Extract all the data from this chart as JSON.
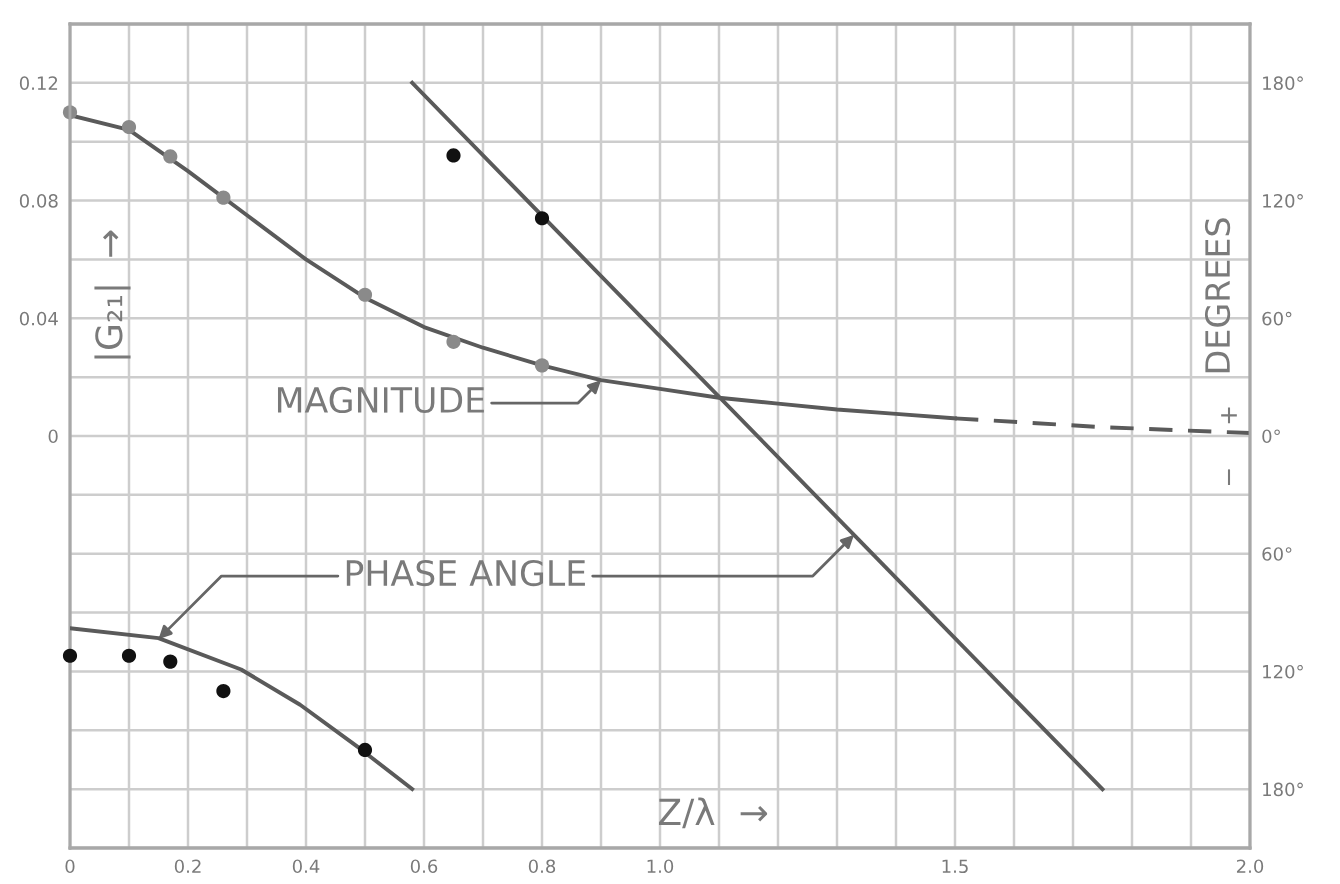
{
  "chart_data": {
    "type": "line",
    "xlabel": "Z/λ  →",
    "ylabel": "|G₂₁|  →",
    "y2label": "DEGREES",
    "annotations": [
      {
        "text": "MAGNITUDE",
        "x": 0.9,
        "y": 0.019
      },
      {
        "text": "PHASE ANGLE",
        "x": 0.15,
        "y": -0.069
      },
      "+",
      "−"
    ],
    "xlim": [
      0,
      2.0
    ],
    "xticks": [
      0,
      {
        "value": 0.1,
        "label": null
      },
      0.2,
      {
        "value": 0.3,
        "label": null
      },
      0.4,
      {
        "value": 0.5,
        "label": null
      },
      0.6,
      {
        "value": 0.7,
        "label": null
      },
      0.8,
      {
        "value": 0.9,
        "label": null
      },
      {
        "value": 1,
        "label": "1.0"
      },
      {
        "value": 1.1,
        "label": null
      },
      {
        "value": 1.2,
        "label": null
      },
      {
        "value": 1.3,
        "label": null
      },
      {
        "value": 1.4,
        "label": null
      },
      1.5,
      {
        "value": 1.6,
        "label": null
      },
      {
        "value": 1.7,
        "label": null
      },
      {
        "value": 1.8,
        "label": null
      },
      {
        "value": 1.9,
        "label": null
      },
      {
        "value": 2,
        "label": "2.0"
      }
    ],
    "ylim": [
      -0.14,
      0.14
    ],
    "yticks": [
      {
        "value": -0.14,
        "label": null
      },
      {
        "value": -0.12,
        "label": null
      },
      {
        "value": -0.1,
        "label": null
      },
      {
        "value": -0.08,
        "label": null
      },
      {
        "value": -0.06,
        "label": null
      },
      {
        "value": -0.04,
        "label": null
      },
      {
        "value": -0.02,
        "label": null
      },
      0,
      {
        "value": 0.02,
        "label": null
      },
      0.04,
      {
        "value": 0.06,
        "label": null
      },
      0.08,
      {
        "value": 0.1,
        "label": null
      },
      0.12,
      {
        "value": 0.14,
        "label": null
      }
    ],
    "y2lim": [
      -210,
      210
    ],
    "y2ticks": [
      {
        "value": -180,
        "label": "180°"
      },
      {
        "value": -120,
        "label": "120°"
      },
      {
        "value": -60,
        "label": "60°"
      },
      {
        "value": 0,
        "label": "0°"
      },
      {
        "value": 60,
        "label": "60°"
      },
      {
        "value": 120,
        "label": "120°"
      },
      {
        "value": 180,
        "label": "180°"
      }
    ],
    "grid": true,
    "series": [
      {
        "color": "#5a5a5a",
        "x": [
          0,
          0.1,
          0.2,
          0.3,
          0.4,
          0.5,
          0.6,
          0.7,
          0.8,
          0.9,
          1.0,
          1.1,
          1.2,
          1.3,
          1.4,
          1.5
        ],
        "values": [
          0.109,
          0.104,
          0.09,
          0.075,
          0.06,
          0.047,
          0.037,
          0.03,
          0.024,
          0.019,
          0.016,
          0.013,
          0.011,
          0.009,
          0.0075,
          0.006
        ]
      },
      {
        "line_style": "dashed",
        "color": "#5a5a5a",
        "x": [
          1.5,
          1.75,
          2.0
        ],
        "values": [
          0.006,
          0.003,
          0.001
        ]
      },
      {
        "type": "scatter",
        "marker": "circle",
        "color": "#8a8a8a",
        "x": [
          0,
          0.1,
          0.17,
          0.26,
          0.5,
          0.65,
          0.8
        ],
        "values": [
          0.11,
          0.105,
          0.095,
          0.081,
          0.048,
          0.032,
          0.024
        ]
      },
      {
        "axis": "y2",
        "color": "#5a5a5a",
        "x": [
          0,
          0.15,
          0.29,
          0.39,
          0.49,
          0.58
        ],
        "values": [
          -98,
          -103,
          -119,
          -137,
          -159,
          -180
        ]
      },
      {
        "axis": "y2",
        "color": "#5a5a5a",
        "x": [
          0.58,
          1.75
        ],
        "values": [
          180,
          -180
        ]
      },
      {
        "type": "scatter",
        "axis": "y2",
        "marker": "circle",
        "color": "#111111",
        "x": [
          0,
          0.1,
          0.17,
          0.26,
          0.5,
          0.65,
          0.8
        ],
        "values": [
          -112,
          -112,
          -115,
          -130,
          -160,
          143,
          111
        ]
      }
    ]
  }
}
